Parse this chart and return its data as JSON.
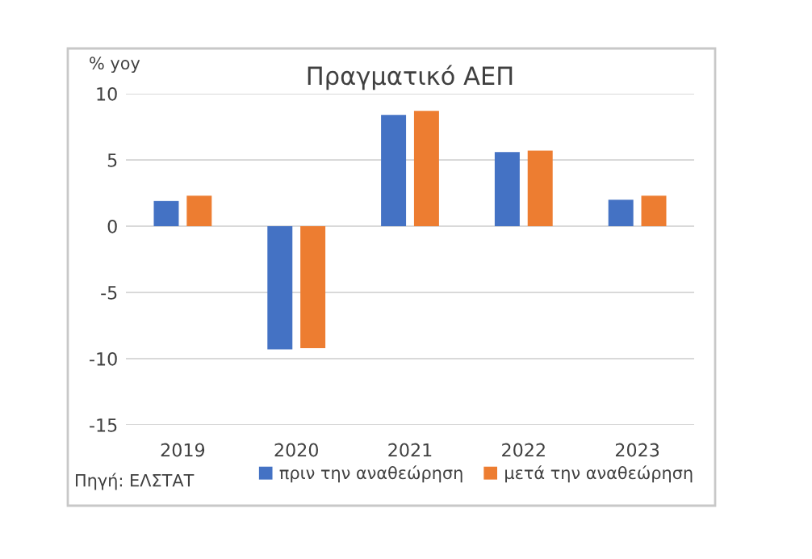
{
  "chart_data": {
    "type": "bar",
    "title": "Πραγματικό ΑΕΠ",
    "ylabel": "% yoy",
    "categories": [
      "2019",
      "2020",
      "2021",
      "2022",
      "2023"
    ],
    "series": [
      {
        "name": "πριν την αναθεώρηση",
        "color": "#4472c4",
        "values": [
          1.9,
          -9.3,
          8.4,
          5.6,
          2.0
        ]
      },
      {
        "name": "μετά την αναθεώρηση",
        "color": "#ed7d31",
        "values": [
          2.3,
          -9.2,
          8.7,
          5.7,
          2.3
        ]
      }
    ],
    "ylim": [
      -15,
      10
    ],
    "yticks": [
      -15,
      -10,
      -5,
      0,
      5,
      10
    ],
    "grid": "y",
    "legend": "bottom",
    "annotations": [
      "Πηγή: ΕΛΣΤΑΤ"
    ]
  }
}
